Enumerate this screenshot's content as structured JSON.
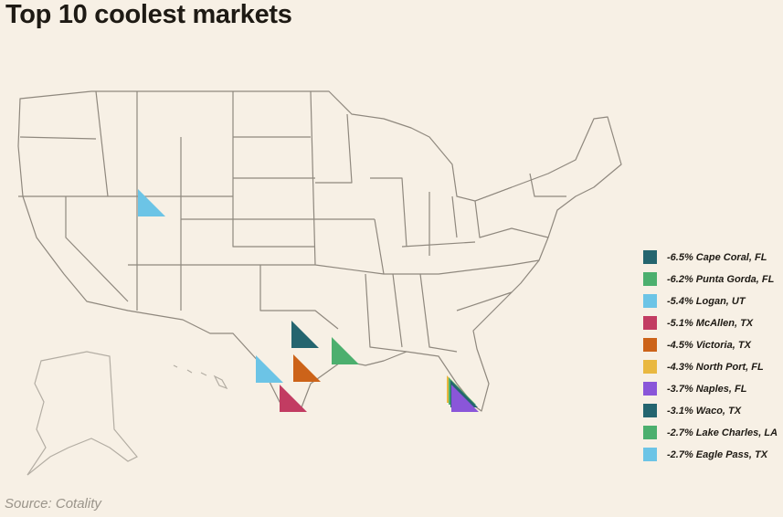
{
  "title": "Top 10 coolest markets",
  "source": "Source: Cotality",
  "legend": [
    {
      "label": "-6.5% Cape Coral, FL",
      "color": "#24656f"
    },
    {
      "label": "-6.2% Punta Gorda, FL",
      "color": "#4caf6e"
    },
    {
      "label": "-5.4% Logan, UT",
      "color": "#6cc4e6"
    },
    {
      "label": "-5.1% McAllen, TX",
      "color": "#c23c62"
    },
    {
      "label": "-4.5% Victoria, TX",
      "color": "#cc6319"
    },
    {
      "label": "-4.3% North Port, FL",
      "color": "#e9b840"
    },
    {
      "label": "-3.7% Naples, FL",
      "color": "#8a56d9"
    },
    {
      "label": "-3.1% Waco, TX",
      "color": "#24656f"
    },
    {
      "label": "-2.7% Lake Charles, LA",
      "color": "#4caf6e"
    },
    {
      "label": "-2.7% Eagle Pass, TX",
      "color": "#6cc4e6"
    }
  ]
}
